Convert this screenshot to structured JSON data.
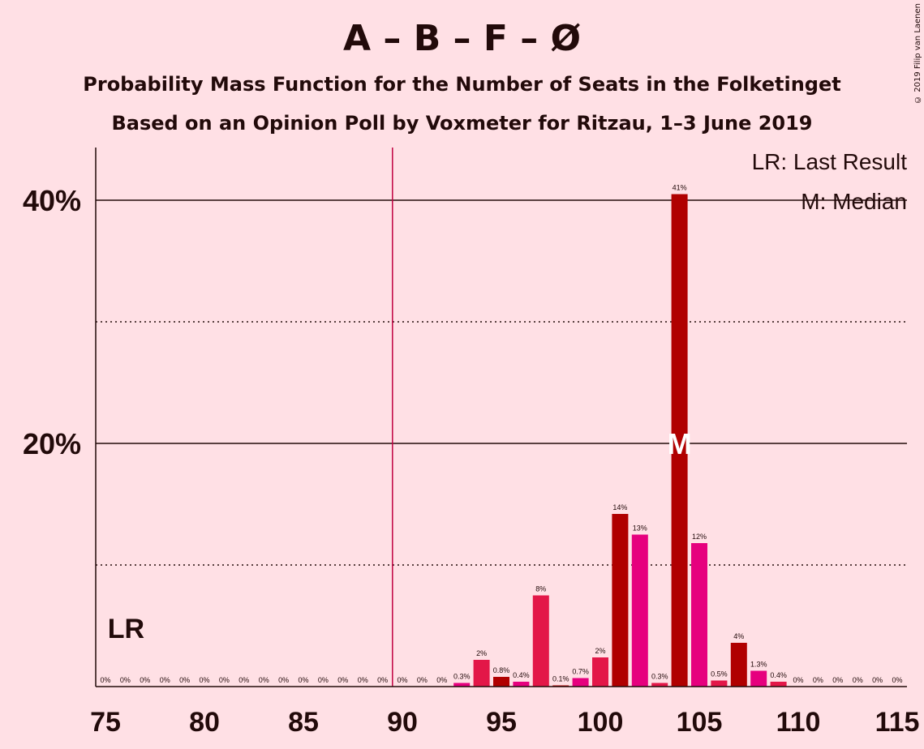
{
  "title": "A – B – F – Ø",
  "subtitle1": "Probability Mass Function for the Number of Seats in the Folketinget",
  "subtitle2": "Based on an Opinion Poll by Voxmeter for Ritzau, 1–3 June 2019",
  "credit": "© 2019 Filip van Laenen",
  "legend": {
    "lr": "LR: Last Result",
    "median": "M: Median"
  },
  "colors": {
    "background": "#FFE0E5",
    "a": "#E6007E",
    "b": "#E31748",
    "c": "#B00000",
    "majority_line": "#C00040"
  },
  "chart_data": {
    "type": "bar",
    "x": [
      75,
      76,
      77,
      78,
      79,
      80,
      81,
      82,
      83,
      84,
      85,
      86,
      87,
      88,
      89,
      90,
      91,
      92,
      93,
      94,
      95,
      96,
      97,
      98,
      99,
      100,
      101,
      102,
      103,
      104,
      105,
      106,
      107,
      108,
      109,
      110,
      111,
      112,
      113,
      114,
      115
    ],
    "values": [
      0,
      0,
      0,
      0,
      0,
      0,
      0,
      0,
      0,
      0,
      0,
      0,
      0,
      0,
      0,
      0,
      0,
      0,
      0.3,
      2.2,
      0.8,
      0.4,
      7.5,
      0.1,
      0.7,
      2.4,
      14.2,
      12.5,
      0.3,
      40.5,
      11.8,
      0.5,
      3.6,
      1.3,
      0.4,
      0,
      0,
      0,
      0,
      0,
      0
    ],
    "labels": [
      "0%",
      "0%",
      "0%",
      "0%",
      "0%",
      "0%",
      "0%",
      "0%",
      "0%",
      "0%",
      "0%",
      "0%",
      "0%",
      "0%",
      "0%",
      "0%",
      "0%",
      "0%",
      "0.3%",
      "2%",
      "0.8%",
      "0.4%",
      "8%",
      "0.1%",
      "0.7%",
      "2%",
      "14%",
      "13%",
      "0.3%",
      "41%",
      "12%",
      "0.5%",
      "4%",
      "1.3%",
      "0.4%",
      "0%",
      "0%",
      "0%",
      "0%",
      "0%",
      "0%"
    ],
    "xticks": [
      75,
      80,
      85,
      90,
      95,
      100,
      105,
      110,
      115
    ],
    "xtick_labels": [
      "75",
      "80",
      "85",
      "90",
      "95",
      "100",
      "105",
      "110",
      "115"
    ],
    "yticks": [
      20,
      40
    ],
    "ytick_labels": [
      "20%",
      "40%"
    ],
    "yminor": [
      10,
      30
    ],
    "ylim": [
      0,
      44
    ],
    "xlim": [
      75,
      115
    ],
    "last_result": 76,
    "last_result_label": "LR",
    "majority": 90,
    "median": 104,
    "median_label": "M"
  }
}
